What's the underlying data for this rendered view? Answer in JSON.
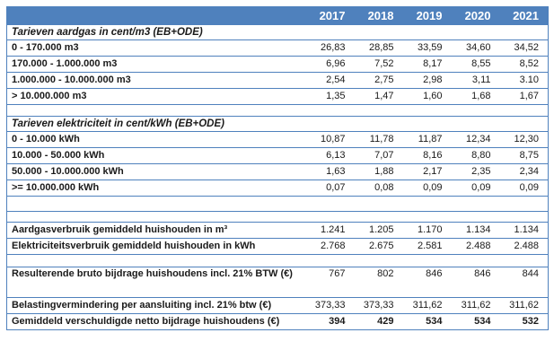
{
  "colors": {
    "accent": "#4f81bd",
    "header_text": "#ffffff",
    "text": "#1a1a1a",
    "background": "#ffffff"
  },
  "header": {
    "years": [
      "2017",
      "2018",
      "2019",
      "2020",
      "2021"
    ]
  },
  "rows": [
    {
      "type": "section",
      "label": "Tarieven aardgas in cent/m3 (EB+ODE)"
    },
    {
      "type": "data",
      "label": "0 - 170.000 m3",
      "values": [
        "26,83",
        "28,85",
        "33,59",
        "34,60",
        "34,52"
      ]
    },
    {
      "type": "data",
      "label": "170.000 - 1.000.000 m3",
      "values": [
        "6,96",
        "7,52",
        "8,17",
        "8,55",
        "8,52"
      ]
    },
    {
      "type": "data",
      "label": "1.000.000 - 10.000.000 m3",
      "values": [
        "2,54",
        "2,75",
        "2,98",
        "3,11",
        "3.10"
      ]
    },
    {
      "type": "data",
      "label": "> 10.000.000 m3",
      "values": [
        "1,35",
        "1,47",
        "1,60",
        "1,68",
        "1,67"
      ]
    },
    {
      "type": "spacer"
    },
    {
      "type": "section",
      "label": "Tarieven elektriciteit in cent/kWh (EB+ODE)"
    },
    {
      "type": "data",
      "label": "0 - 10.000 kWh",
      "values": [
        "10,87",
        "11,78",
        "11,87",
        "12,34",
        "12,30"
      ]
    },
    {
      "type": "data",
      "label": "10.000 - 50.000 kWh",
      "values": [
        "6,13",
        "7,07",
        "8,16",
        "8,80",
        "8,75"
      ]
    },
    {
      "type": "data",
      "label": "50.000 - 10.000.000 kWh",
      "values": [
        "1,63",
        "1,88",
        "2,17",
        "2,35",
        "2,34"
      ]
    },
    {
      "type": "data",
      "label": ">= 10.000.000 kWh",
      "values": [
        "0,07",
        "0,08",
        "0,09",
        "0,09",
        "0,09"
      ]
    },
    {
      "type": "spacer"
    },
    {
      "type": "spacer"
    },
    {
      "type": "data",
      "label": "Aardgasverbruik gemiddeld huishouden in m³",
      "values": [
        "1.241",
        "1.205",
        "1.170",
        "1.134",
        "1.134"
      ]
    },
    {
      "type": "data",
      "label": "Elektriciteitsverbruik gemiddeld huishouden in kWh",
      "values": [
        "2.768",
        "2.675",
        "2.581",
        "2.488",
        "2.488"
      ]
    },
    {
      "type": "spacer"
    },
    {
      "type": "data",
      "label": "Resulterende bruto bijdrage huishoudens incl. 21% BTW (€)",
      "values": [
        "767",
        "802",
        "846",
        "846",
        "844"
      ]
    },
    {
      "type": "data",
      "label": "Belastingvermindering per aansluiting incl. 21% btw (€)",
      "values": [
        "373,33",
        "373,33",
        "311,62",
        "311,62",
        "311,62"
      ]
    },
    {
      "type": "data",
      "label": "Gemiddeld verschuldigde netto bijdrage huishoudens (€)",
      "values": [
        "394",
        "429",
        "534",
        "534",
        "532"
      ]
    }
  ]
}
